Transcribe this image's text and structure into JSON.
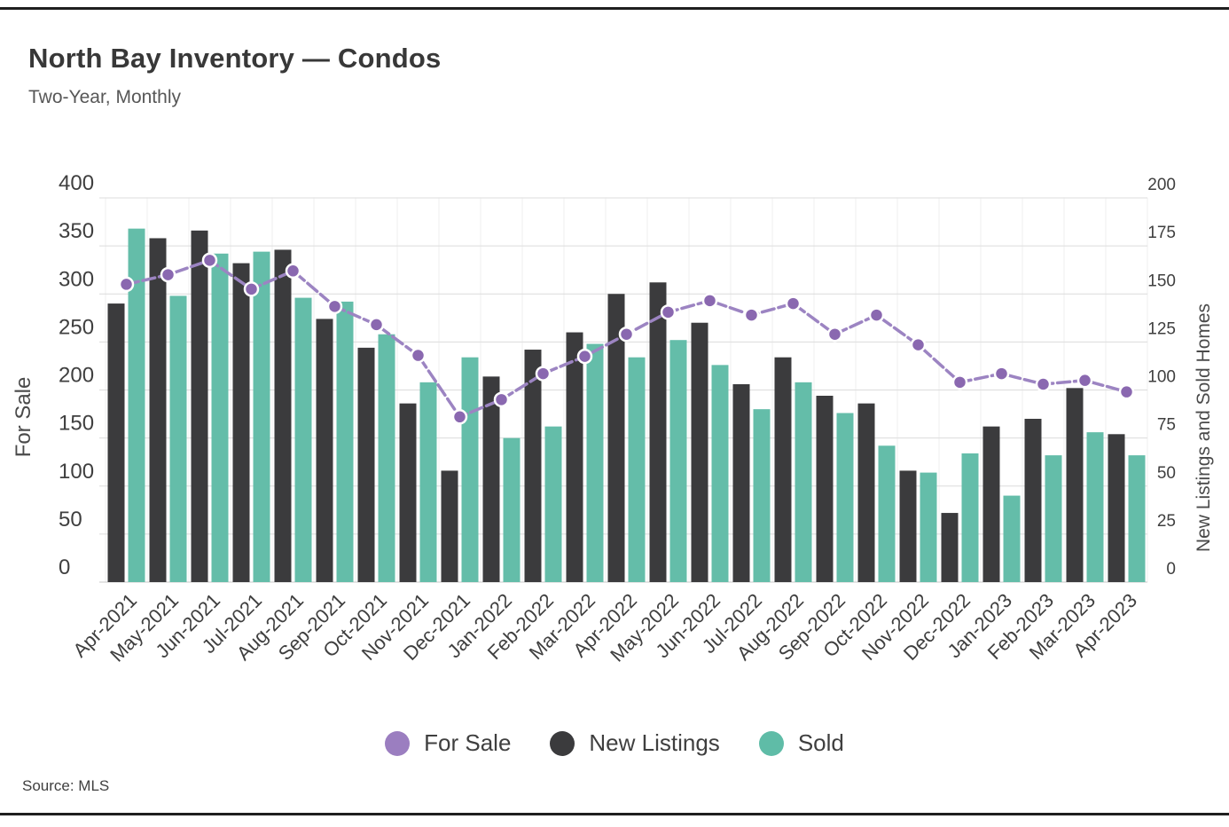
{
  "header": {
    "title": "North Bay Inventory — Condos",
    "subtitle": "Two-Year, Monthly"
  },
  "source": {
    "text": "Source:  MLS"
  },
  "legend": [
    {
      "id": "for-sale",
      "label": "For Sale",
      "color": "#9b7ec0",
      "shape": "circle"
    },
    {
      "id": "new-listings",
      "label": "New Listings",
      "color": "#3b3b3d",
      "shape": "circle"
    },
    {
      "id": "sold",
      "label": "Sold",
      "color": "#5fbca7",
      "shape": "circle"
    }
  ],
  "colors": {
    "line": "#9c84c2",
    "marker": "#8a68b0",
    "marker_ring": "#ffffff",
    "bar_dark": "#3b3b3d",
    "bar_teal": "#64bda9",
    "grid": "#dcdcdc",
    "grid_vertical": "#efefef",
    "axis_line": "#c8c8c8",
    "tick_text": "#3f3f3f",
    "axis_title_text": "#4a4a4a",
    "border_rule": "#1f1f1f"
  },
  "chart_data": {
    "type": "bar",
    "subtype": "grouped bars + line overlay, dual axis",
    "title": "North Bay Inventory — Condos",
    "subtitle": "Two-Year, Monthly",
    "grid": "horizontal solid + faint vertical month separators",
    "legend_position": "bottom center",
    "categories": [
      "Apr-2021",
      "May-2021",
      "Jun-2021",
      "Jul-2021",
      "Aug-2021",
      "Sep-2021",
      "Oct-2021",
      "Nov-2021",
      "Dec-2021",
      "Jan-2022",
      "Feb-2022",
      "Mar-2022",
      "Apr-2022",
      "May-2022",
      "Jun-2022",
      "Jul-2022",
      "Aug-2022",
      "Sep-2022",
      "Oct-2022",
      "Nov-2022",
      "Dec-2022",
      "Jan-2023",
      "Feb-2023",
      "Mar-2023",
      "Apr-2023"
    ],
    "left_axis": {
      "title": "For Sale",
      "min": 0,
      "max": 400,
      "step": 50
    },
    "right_axis": {
      "title": "New Listings and Sold Homes",
      "min": 0,
      "max": 200,
      "step": 25
    },
    "series": [
      {
        "name": "For Sale",
        "type": "line",
        "axis": "left",
        "values": [
          310,
          320,
          335,
          305,
          324,
          287,
          268,
          236,
          172,
          190,
          217,
          235,
          258,
          281,
          293,
          278,
          290,
          258,
          278,
          247,
          208,
          217,
          206,
          210,
          198
        ]
      },
      {
        "name": "New Listings",
        "type": "bar",
        "axis": "right",
        "values": [
          145,
          179,
          183,
          166,
          173,
          137,
          122,
          93,
          58,
          107,
          121,
          130,
          150,
          156,
          135,
          103,
          117,
          97,
          93,
          58,
          36,
          81,
          85,
          101,
          77
        ]
      },
      {
        "name": "Sold",
        "type": "bar",
        "axis": "right",
        "values": [
          184,
          149,
          171,
          172,
          148,
          146,
          129,
          104,
          117,
          75,
          81,
          124,
          117,
          126,
          113,
          90,
          104,
          88,
          71,
          57,
          67,
          45,
          66,
          78,
          66
        ]
      }
    ]
  }
}
